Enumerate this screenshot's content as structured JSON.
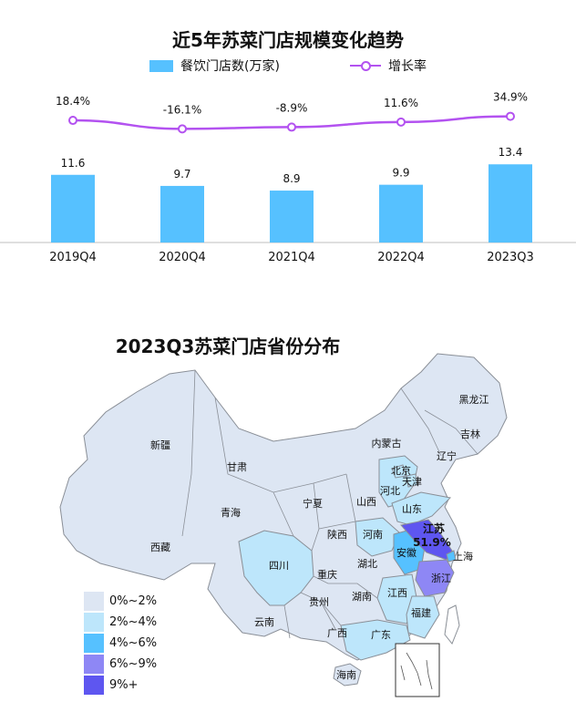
{
  "chart_data": [
    {
      "type": "bar",
      "title": "近5年苏菜门店规模变化趋势",
      "categories": [
        "2019Q4",
        "2020Q4",
        "2021Q4",
        "2022Q4",
        "2023Q3"
      ],
      "series": [
        {
          "name": "餐饮门店数(万家)",
          "kind": "bar",
          "values": [
            11.6,
            9.7,
            8.9,
            9.9,
            13.4
          ],
          "labels": [
            "11.6",
            "9.7",
            "8.9",
            "9.9",
            "13.4"
          ]
        },
        {
          "name": "增长率",
          "kind": "line",
          "values": [
            18.4,
            -16.1,
            -8.9,
            11.6,
            34.9
          ],
          "labels": [
            "18.4%",
            "-16.1%",
            "-8.9%",
            "11.6%",
            "34.9%"
          ]
        }
      ],
      "legend_position": "top",
      "colors": {
        "bar": "#56c1ff",
        "line": "#b352f0"
      }
    },
    {
      "type": "choropleth-map",
      "title": "2023Q3苏菜门店省份分布",
      "legend": [
        {
          "label": "0%~2%",
          "color": "#dde6f3"
        },
        {
          "label": "2%~4%",
          "color": "#bde6fb"
        },
        {
          "label": "4%~6%",
          "color": "#56c1ff"
        },
        {
          "label": "6%~9%",
          "color": "#8e87f5"
        },
        {
          "label": "9%+",
          "color": "#5e56f0"
        }
      ],
      "regions": [
        {
          "name": "黑龙江",
          "bin": 0
        },
        {
          "name": "吉林",
          "bin": 0
        },
        {
          "name": "辽宁",
          "bin": 0
        },
        {
          "name": "内蒙古",
          "bin": 0
        },
        {
          "name": "新疆",
          "bin": 0
        },
        {
          "name": "甘肃",
          "bin": 0
        },
        {
          "name": "宁夏",
          "bin": 0
        },
        {
          "name": "青海",
          "bin": 0
        },
        {
          "name": "西藏",
          "bin": 0
        },
        {
          "name": "陕西",
          "bin": 0
        },
        {
          "name": "山西",
          "bin": 0
        },
        {
          "name": "河北",
          "bin": 1
        },
        {
          "name": "北京",
          "bin": 1
        },
        {
          "name": "天津",
          "bin": 1
        },
        {
          "name": "山东",
          "bin": 1
        },
        {
          "name": "河南",
          "bin": 1
        },
        {
          "name": "湖北",
          "bin": 0
        },
        {
          "name": "重庆",
          "bin": 0
        },
        {
          "name": "四川",
          "bin": 1
        },
        {
          "name": "贵州",
          "bin": 0
        },
        {
          "name": "云南",
          "bin": 0
        },
        {
          "name": "湖南",
          "bin": 0
        },
        {
          "name": "江西",
          "bin": 1
        },
        {
          "name": "广西",
          "bin": 0
        },
        {
          "name": "广东",
          "bin": 1
        },
        {
          "name": "福建",
          "bin": 1
        },
        {
          "name": "海南",
          "bin": 0
        },
        {
          "name": "安徽",
          "bin": 2
        },
        {
          "name": "上海",
          "bin": 2
        },
        {
          "name": "浙江",
          "bin": 3
        },
        {
          "name": "江苏",
          "bin": 4,
          "value_label": "51.9%"
        }
      ]
    }
  ]
}
